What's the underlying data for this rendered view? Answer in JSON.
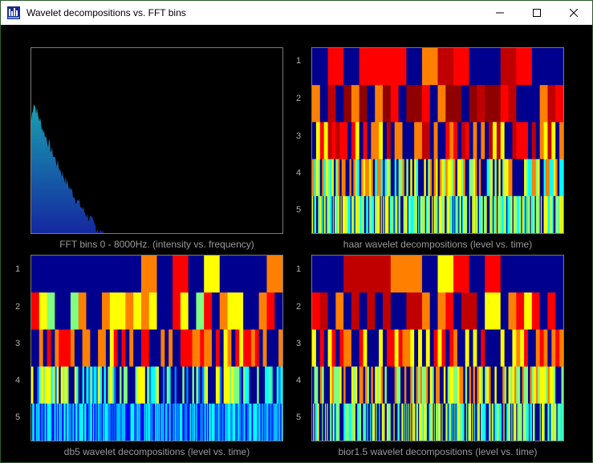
{
  "window": {
    "title": "Wavelet decompositions vs. FFT bins"
  },
  "window_controls": [
    "minimize",
    "maximize",
    "close"
  ],
  "panels": [
    {
      "id": "fft",
      "caption": "FFT bins 0 - 8000Hz. (intensity vs. frequency)"
    },
    {
      "id": "haar",
      "caption": "haar wavelet decompositions (level vs. time)",
      "levels": [
        "1",
        "2",
        "3",
        "4",
        "5"
      ]
    },
    {
      "id": "db5",
      "caption": "db5 wavelet decompositions (level vs. time)",
      "levels": [
        "1",
        "2",
        "3",
        "4",
        "5"
      ]
    },
    {
      "id": "bior",
      "caption": "bior1.5 wavelet decompositions (level vs. time)",
      "levels": [
        "1",
        "2",
        "3",
        "4",
        "5"
      ]
    }
  ],
  "colors": {
    "background": "#000000",
    "border": "#7a7a7a",
    "caption": "#9a9a9a",
    "fft_top": "#1aa0b0",
    "fft_bottom": "#1428a0"
  }
}
